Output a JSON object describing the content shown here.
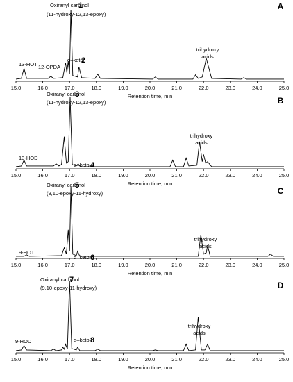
{
  "chart_data": [
    {
      "type": "line",
      "panel": "A",
      "color": "#000000",
      "xlabel": "Retention time, min",
      "annotations": [
        "Oxiranyl carbinol",
        "1",
        "(11-hydroxy-12,13-epoxy)",
        "13-HOT",
        "12-OPDA",
        "α–ketol",
        "2",
        "trihydroxy",
        "acids"
      ],
      "x": [
        15.0,
        15.2,
        15.3,
        15.4,
        16.2,
        16.3,
        16.4,
        16.75,
        16.85,
        16.9,
        16.95,
        17.0,
        17.05,
        17.12,
        17.3,
        17.35,
        17.45,
        17.95,
        18.05,
        18.15,
        20.1,
        20.2,
        20.3,
        21.6,
        21.7,
        21.8,
        21.95,
        22.1,
        22.3,
        23.4,
        23.5,
        23.6,
        25.0
      ],
      "values": [
        3,
        4,
        18,
        4,
        4,
        7,
        4,
        5,
        26,
        12,
        28,
        10,
        100,
        8,
        6,
        20,
        5,
        4,
        10,
        4,
        3,
        6,
        3,
        3,
        9,
        4,
        6,
        32,
        4,
        3,
        5,
        3,
        3
      ],
      "xlim": [
        15,
        25
      ],
      "ylim": [
        0,
        100
      ],
      "xticks": [
        {
          "value": 15,
          "label": "15.0"
        },
        {
          "value": 16,
          "label": "16.0"
        },
        {
          "value": 17,
          "label": "17.0"
        },
        {
          "value": 18,
          "label": "18.0"
        },
        {
          "value": 19,
          "label": "19.0"
        },
        {
          "value": 20,
          "label": "20.0"
        },
        {
          "value": 21,
          "label": "21.0"
        },
        {
          "value": 22,
          "label": "22.0"
        },
        {
          "value": 23,
          "label": "23.0"
        },
        {
          "value": 24,
          "label": "24.0"
        },
        {
          "value": 25,
          "label": "25.0"
        }
      ]
    },
    {
      "type": "line",
      "panel": "B",
      "color": "#000000",
      "xlabel": "Retention time, min",
      "annotations": [
        "Oxiranyl carbinol",
        "3",
        "(11-hydroxy-12,13-epoxy)",
        "13-HOD",
        "α–ketol",
        "4",
        "trihydroxy",
        "acids"
      ],
      "x": [
        15.0,
        15.2,
        15.3,
        15.4,
        16.4,
        16.5,
        16.6,
        16.7,
        16.8,
        16.88,
        16.95,
        17.02,
        17.1,
        17.25,
        17.32,
        17.4,
        20.75,
        20.85,
        20.95,
        21.25,
        21.35,
        21.45,
        21.75,
        21.85,
        21.95,
        22.0,
        22.08,
        22.15,
        22.3,
        25.0
      ],
      "values": [
        3,
        4,
        12,
        4,
        4,
        7,
        4,
        6,
        45,
        8,
        10,
        100,
        6,
        4,
        7,
        3,
        3,
        12,
        3,
        3,
        15,
        4,
        5,
        38,
        10,
        20,
        8,
        10,
        3,
        3
      ],
      "xlim": [
        15,
        25
      ],
      "ylim": [
        0,
        100
      ],
      "xticks": [
        {
          "value": 15,
          "label": "15.0"
        },
        {
          "value": 16,
          "label": "16.0"
        },
        {
          "value": 17,
          "label": "17.0"
        },
        {
          "value": 18,
          "label": "18.0"
        },
        {
          "value": 19,
          "label": "19.0"
        },
        {
          "value": 20,
          "label": "20.0"
        },
        {
          "value": 21,
          "label": "21.0"
        },
        {
          "value": 22,
          "label": "22.0"
        },
        {
          "value": 23,
          "label": "23.0"
        },
        {
          "value": 24,
          "label": "24.0"
        },
        {
          "value": 25,
          "label": "25.0"
        }
      ]
    },
    {
      "type": "line",
      "panel": "C",
      "color": "#000000",
      "xlabel": "Retention time, min",
      "annotations": [
        "Oxiranyl carbinol",
        "5",
        "(9,10-epoxy-11-hydroxy)",
        "9-HOT",
        "α–ketol",
        "6",
        "trihydroxy",
        "acids"
      ],
      "x": [
        15.0,
        15.3,
        15.4,
        15.5,
        16.7,
        16.8,
        16.88,
        16.95,
        17.0,
        17.05,
        17.12,
        17.25,
        17.3,
        17.38,
        21.8,
        21.9,
        22.0,
        22.1,
        22.15,
        22.25,
        24.4,
        24.5,
        24.6,
        25.0
      ],
      "values": [
        3,
        3,
        5,
        3,
        4,
        15,
        6,
        40,
        10,
        100,
        6,
        4,
        10,
        3,
        3,
        33,
        6,
        8,
        18,
        3,
        3,
        6,
        3,
        3
      ],
      "xlim": [
        15,
        25
      ],
      "ylim": [
        0,
        100
      ],
      "xticks": [
        {
          "value": 15,
          "label": "15.0"
        },
        {
          "value": 16,
          "label": "16.0"
        },
        {
          "value": 17,
          "label": "17.0"
        },
        {
          "value": 18,
          "label": "18.0"
        },
        {
          "value": 19,
          "label": "19.0"
        },
        {
          "value": 20,
          "label": "20.0"
        },
        {
          "value": 21,
          "label": "21.0"
        },
        {
          "value": 22,
          "label": "22.0"
        },
        {
          "value": 23,
          "label": "23.0"
        },
        {
          "value": 24,
          "label": "24.0"
        },
        {
          "value": 25,
          "label": "25.0"
        }
      ]
    },
    {
      "type": "line",
      "panel": "D",
      "color": "#000000",
      "xlabel": "Retention time, min",
      "annotations": [
        "Oxiranyl carbinol",
        "7",
        "(9,10-epoxy-11-hydroxy)",
        "9-HOD",
        "α–ketol",
        "8",
        "trihydroxy",
        "acids"
      ],
      "x": [
        15.0,
        15.2,
        15.3,
        15.4,
        16.3,
        16.4,
        16.5,
        16.7,
        16.75,
        16.8,
        16.85,
        16.92,
        17.0,
        17.08,
        17.25,
        17.3,
        17.38,
        17.95,
        18.05,
        18.15,
        20.1,
        20.2,
        20.3,
        21.25,
        21.35,
        21.45,
        21.7,
        21.8,
        21.92,
        22.05,
        22.15,
        22.25,
        25.0
      ],
      "values": [
        3,
        4,
        10,
        4,
        3,
        5,
        3,
        4,
        8,
        5,
        12,
        5,
        100,
        6,
        4,
        8,
        3,
        3,
        5,
        3,
        3,
        4,
        3,
        3,
        12,
        3,
        4,
        50,
        4,
        4,
        12,
        3,
        3
      ],
      "xlim": [
        15,
        25
      ],
      "ylim": [
        0,
        100
      ],
      "xticks": [
        {
          "value": 15,
          "label": "15.0"
        },
        {
          "value": 16,
          "label": "16.0"
        },
        {
          "value": 17,
          "label": "17.0"
        },
        {
          "value": 18,
          "label": "18.0"
        },
        {
          "value": 19,
          "label": "19.0"
        },
        {
          "value": 20,
          "label": "20.0"
        },
        {
          "value": 21,
          "label": "21.0"
        },
        {
          "value": 22,
          "label": "22.0"
        },
        {
          "value": 23,
          "label": "23.0"
        },
        {
          "value": 24,
          "label": "24.0"
        },
        {
          "value": 25,
          "label": "25.0"
        }
      ]
    }
  ]
}
